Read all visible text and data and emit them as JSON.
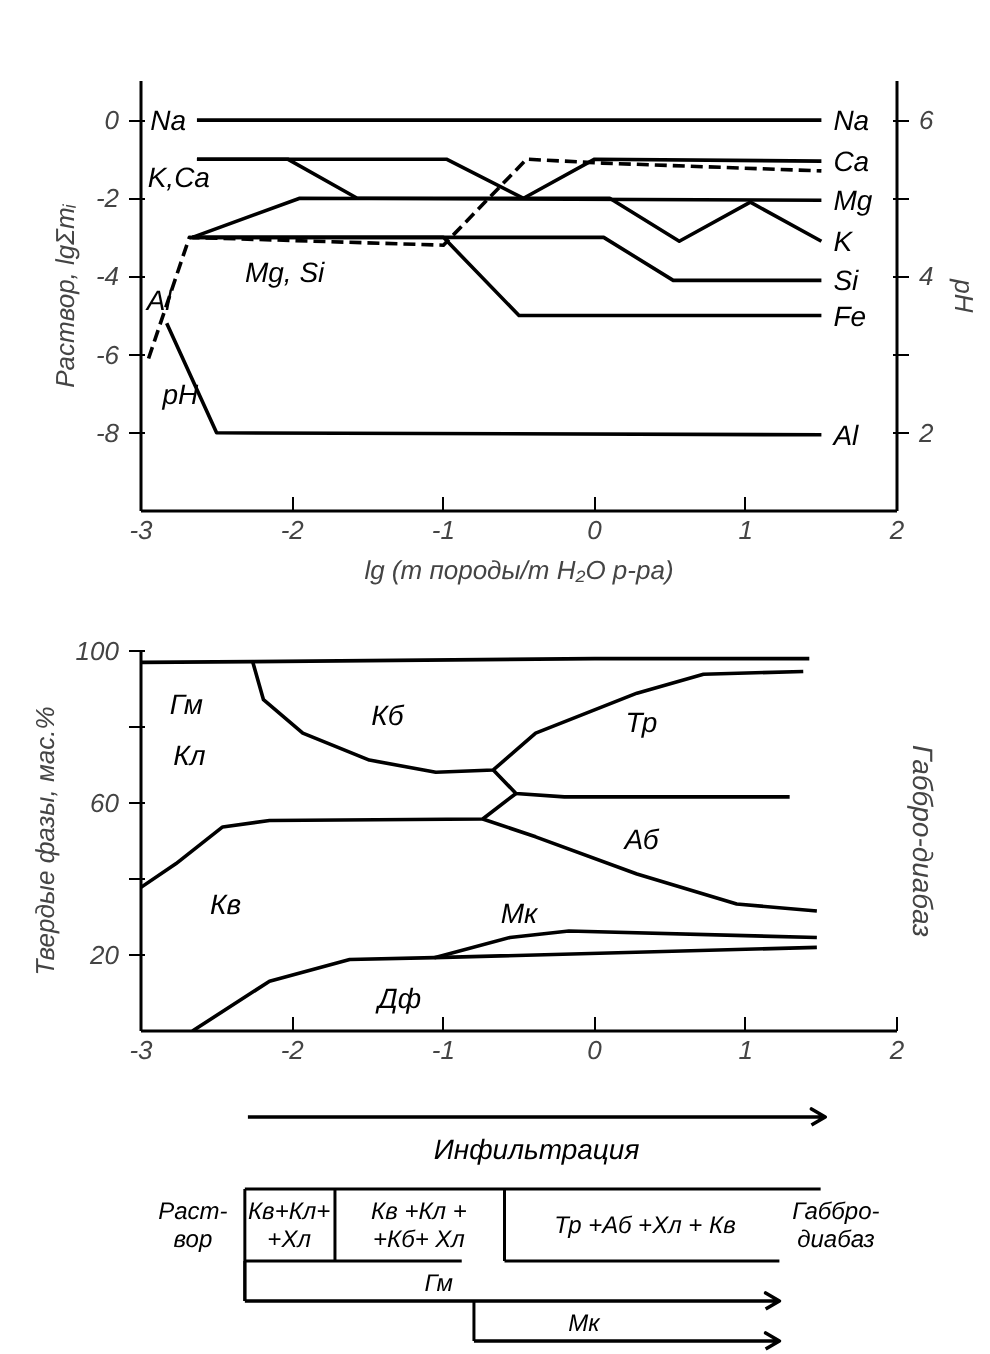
{
  "chart_data": [
    {
      "type": "line",
      "xlabel": "lg (m породы/m H₂O р-ра)",
      "ylabel": "Раствор, lgΣmᵢ",
      "y2label": "pH",
      "xlim": [
        -3,
        2
      ],
      "xticks": [
        -3,
        -2,
        -1,
        0,
        1,
        2
      ],
      "ylim": [
        -10,
        1
      ],
      "yticks": [
        0,
        -2,
        -4,
        -6,
        -8
      ],
      "y2lim": [
        1,
        6.5
      ],
      "y2ticks": [
        2,
        {
          "value": 3,
          "label": null
        },
        4,
        {
          "value": 5,
          "label": null
        },
        6
      ],
      "grid": false,
      "legend": "right",
      "line_style": "solid",
      "series": [
        {
          "name": "Na",
          "color": "#000000",
          "x": [
            -2.63,
            1.5
          ],
          "values": [
            0,
            0
          ]
        },
        {
          "name": "Ca",
          "color": "#000000",
          "x": [
            -2.63,
            -0.98,
            -0.47,
            0,
            1.5
          ],
          "values": [
            -1,
            -1,
            -2,
            -1,
            -1.05
          ]
        },
        {
          "name": "Mg",
          "color": "#000000",
          "x": [
            -2.66,
            -1.95,
            1.5
          ],
          "values": [
            -3,
            -2,
            -2.05
          ]
        },
        {
          "name": "K",
          "color": "#000000",
          "x": [
            -2.63,
            -2.03,
            -1.57,
            0.1,
            0.56,
            1.03,
            1.5
          ],
          "values": [
            -1,
            -1,
            -2,
            -2,
            -3.1,
            -2.1,
            -3.1
          ]
        },
        {
          "name": "Si",
          "color": "#000000",
          "x": [
            -2.66,
            0.06,
            0.52,
            1.5
          ],
          "values": [
            -3,
            -3,
            -4.1,
            -4.1
          ]
        },
        {
          "name": "Fe",
          "color": "#000000",
          "x": [
            -2.66,
            -1,
            -0.5,
            1.5
          ],
          "values": [
            -3,
            -3,
            -5,
            -5
          ]
        },
        {
          "name": "Al",
          "color": "#000000",
          "x": [
            -2.83,
            -2.5,
            1.5
          ],
          "values": [
            -5.2,
            -8,
            -8.05
          ]
        },
        {
          "color": "#000000",
          "axis": "y2",
          "line_style": "dashed",
          "x": [
            -2.95,
            -2.68,
            -1,
            -0.45,
            0.05,
            1.5
          ],
          "values": [
            2.95,
            4.5,
            4.4,
            5.5,
            5.45,
            5.35
          ]
        }
      ],
      "annotations": [
        "Na",
        "K,Ca",
        "Mg, Si",
        "Al",
        "pH"
      ]
    },
    {
      "type": "line",
      "xlabel": "Инфильтрация",
      "ylabel": "Твердые фазы, мас.%",
      "xlim": [
        -3,
        2
      ],
      "xticks": [
        -3,
        -2,
        -1,
        0,
        1,
        2
      ],
      "ylim": [
        0,
        100
      ],
      "yticks": [
        20,
        {
          "value": 40,
          "label": null
        },
        60,
        {
          "value": 80,
          "label": null
        },
        100
      ],
      "grid": false,
      "line_style": "solid",
      "series": [
        {
          "color": "#000000",
          "x": [
            -3,
            -2.26,
            0,
            1.42
          ],
          "values": [
            97,
            97.2,
            98,
            98
          ]
        },
        {
          "color": "#000000",
          "x": [
            -2.26,
            -2.19,
            -1.93,
            -1.49,
            -1.05,
            -0.67,
            -0.39,
            0.28,
            0.72,
            1.38
          ],
          "values": [
            97,
            87.2,
            78.4,
            71.3,
            68.1,
            68.7,
            78.4,
            88.9,
            93.9,
            94.6
          ]
        },
        {
          "color": "#000000",
          "x": [
            -0.67,
            -0.52,
            -0.2,
            1.29
          ],
          "values": [
            68.7,
            62.5,
            61.6,
            61.6
          ]
        },
        {
          "color": "#000000",
          "x": [
            -3,
            -2.77,
            -2.46,
            -2.15,
            -0.74,
            -0.52
          ],
          "values": [
            37.8,
            44,
            53.7,
            55.4,
            55.8,
            62.5
          ]
        },
        {
          "color": "#000000",
          "x": [
            -0.74,
            -0.39,
            0.28,
            0.94,
            1.47
          ],
          "values": [
            55.8,
            51.1,
            41.3,
            33.4,
            31.6
          ]
        },
        {
          "color": "#000000",
          "x": [
            -2.66,
            -2.15,
            -1.62,
            -1.06,
            1.47
          ],
          "values": [
            0,
            13.1,
            18.8,
            19.3,
            22
          ]
        },
        {
          "color": "#000000",
          "x": [
            -1.06,
            -0.56,
            -0.17,
            1.47
          ],
          "values": [
            19.3,
            24.6,
            26.3,
            24.6
          ]
        }
      ],
      "annotations": [
        "Гм",
        "Кл",
        "Кб",
        "Тр",
        "Кв",
        "Аб",
        "Мк",
        "Дф",
        "Габбро-диабаз"
      ]
    },
    {
      "type": "other",
      "annotations": [
        "Раст-\nвор",
        "Кв+Кл+\n+Хл",
        "Кв +Кл +\n+Кб+ Хл",
        "Тр +Аб +Хл + Кв",
        "Габбро-\nдиабаз",
        "Гм",
        "Мк"
      ]
    }
  ]
}
